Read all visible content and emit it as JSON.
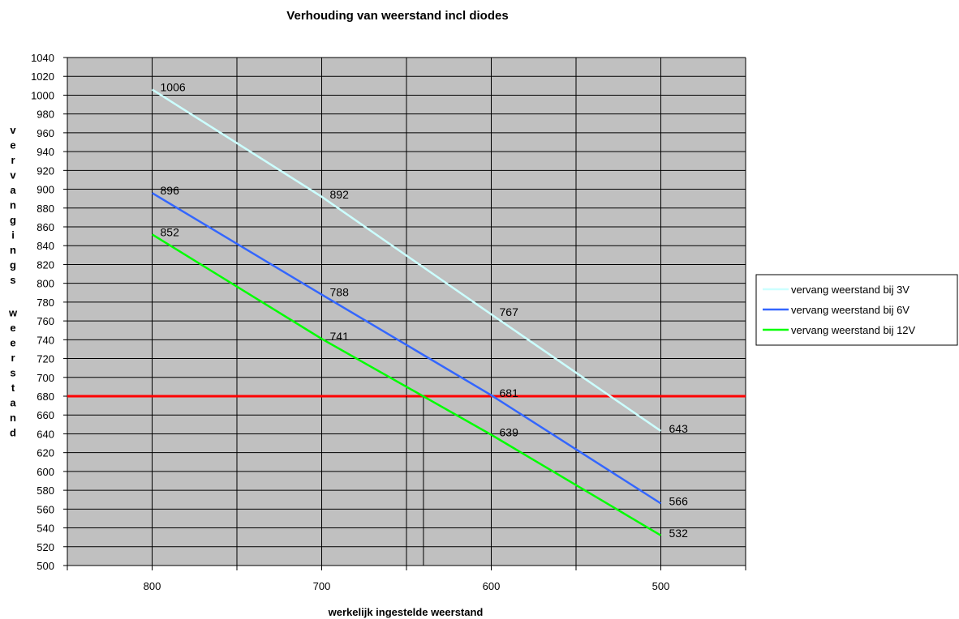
{
  "chart_data": {
    "type": "line",
    "title": "Verhouding van weerstand incl diodes",
    "xlabel": "werkelijk ingestelde weerstand",
    "ylabel": "vervangings weerstand",
    "x": [
      800,
      700,
      600,
      500
    ],
    "x_tick_labels": [
      "800",
      "700",
      "600",
      "500"
    ],
    "xlim": [
      850,
      450
    ],
    "ylim": [
      500,
      1040
    ],
    "y_step": 20,
    "grid": true,
    "plot_background": "#c0c0c0",
    "legend_position": "right",
    "series": [
      {
        "name": "vervang weerstand bij 3V",
        "color": "#ccffff",
        "values": [
          1006,
          892,
          767,
          643
        ],
        "labels": [
          "1006",
          "892",
          "767",
          "643"
        ]
      },
      {
        "name": "vervang weerstand bij 6V",
        "color": "#3366ff",
        "values": [
          896,
          788,
          681,
          566
        ],
        "labels": [
          "896",
          "788",
          "681",
          "566"
        ]
      },
      {
        "name": "vervang weerstand bij 12V",
        "color": "#00ff00",
        "values": [
          852,
          741,
          639,
          532
        ],
        "labels": [
          "852",
          "741",
          "639",
          "532"
        ]
      }
    ],
    "reference_line": {
      "y": 680,
      "color": "#ff0000"
    },
    "reference_drops": [
      {
        "x": 650,
        "y": 680
      },
      {
        "x": 640,
        "y": 680
      }
    ]
  }
}
